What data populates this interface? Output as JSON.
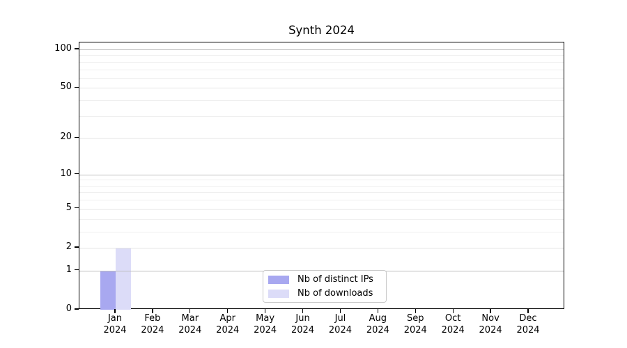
{
  "chart_data": {
    "type": "bar",
    "title": "Synth 2024",
    "categories": [
      "Jan",
      "Feb",
      "Mar",
      "Apr",
      "May",
      "Jun",
      "Jul",
      "Aug",
      "Sep",
      "Oct",
      "Nov",
      "Dec"
    ],
    "category_year": "2024",
    "series": [
      {
        "name": "Nb of distinct IPs",
        "color": "#a8a8f0",
        "values": [
          1,
          0,
          0,
          0,
          0,
          0,
          0,
          0,
          0,
          0,
          0,
          0
        ]
      },
      {
        "name": "Nb of downloads",
        "color": "#dcdcf8",
        "values": [
          2,
          0,
          0,
          0,
          0,
          0,
          0,
          0,
          0,
          0,
          0,
          0
        ]
      }
    ],
    "yscale": "log1p",
    "ylim": [
      0,
      113
    ],
    "yticks": [
      0,
      1,
      2,
      5,
      10,
      20,
      50,
      100
    ],
    "decade_ticks": [
      1,
      10,
      100
    ],
    "minor_yticks": [
      3,
      4,
      6,
      7,
      8,
      9,
      30,
      40,
      60,
      70,
      80,
      90
    ],
    "grid": "horizontal",
    "legend_position": "lower-center-inside",
    "colors": {
      "decade_gridline": "#bdbdbd",
      "gridline": "#e4e4e4",
      "minor_gridline": "#efefef",
      "axis": "#000000",
      "text": "#000000",
      "background": "#ffffff",
      "legend_border": "#c9c9c9"
    }
  }
}
